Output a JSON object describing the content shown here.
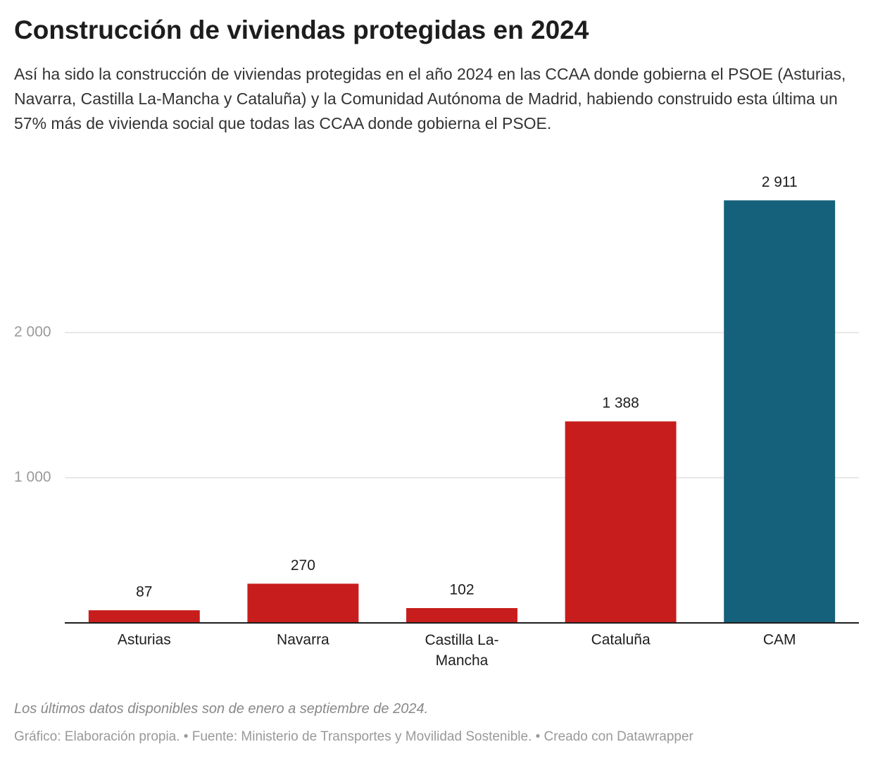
{
  "chart_data": {
    "type": "bar",
    "title": "Construcción de viviendas protegidas en 2024",
    "subtitle": "Así ha sido la construcción de viviendas protegidas en el año 2024 en las CCAA donde gobierna el PSOE (Asturias, Navarra, Castilla La-Mancha y Cataluña) y la Comunidad Autónoma de Madrid, habiendo construido esta última un 57% más de vivienda social que todas las CCAA donde gobierna el PSOE.",
    "categories": [
      "Asturias",
      "Navarra",
      "Castilla La-Mancha",
      "Cataluña",
      "CAM"
    ],
    "values": [
      87,
      270,
      102,
      1388,
      2911
    ],
    "value_labels": [
      "87",
      "270",
      "102",
      "1 388",
      "2 911"
    ],
    "colors": [
      "#c71e1d",
      "#c71e1d",
      "#c71e1d",
      "#c71e1d",
      "#15607a"
    ],
    "ylim": [
      0,
      3000
    ],
    "yticks": [
      {
        "value": 1000,
        "label": "1 000"
      },
      {
        "value": 2000,
        "label": "2 000"
      }
    ],
    "grid": true,
    "note": "Los últimos datos disponibles son de enero a septiembre de 2024.",
    "credit": "Gráfico: Elaboración propia. • Fuente: Ministerio de Transportes y Movilidad Sostenible. • Creado con Datawrapper"
  }
}
